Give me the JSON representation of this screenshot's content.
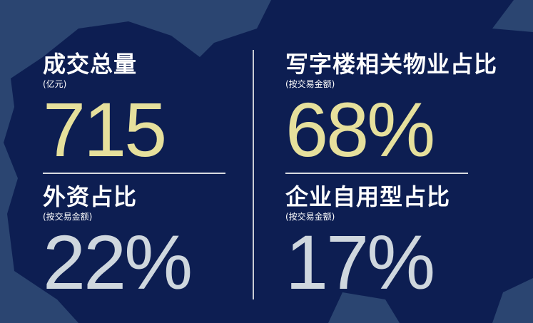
{
  "colors": {
    "background": "#2b4571",
    "map_dark": "#0d1e52",
    "value_gold": "#e6e09c",
    "value_grey": "#cfd7de"
  },
  "stats": [
    {
      "title": "成交总量",
      "subtitle": "(亿元)",
      "value": "715"
    },
    {
      "title": "写字楼相关物业占比",
      "subtitle": "(按交易金额)",
      "value": "68%"
    },
    {
      "title": "外资占比",
      "subtitle": "(按交易金额)",
      "value": "22%"
    },
    {
      "title": "企业自用型占比",
      "subtitle": "(按交易金额)",
      "value": "17%"
    }
  ]
}
